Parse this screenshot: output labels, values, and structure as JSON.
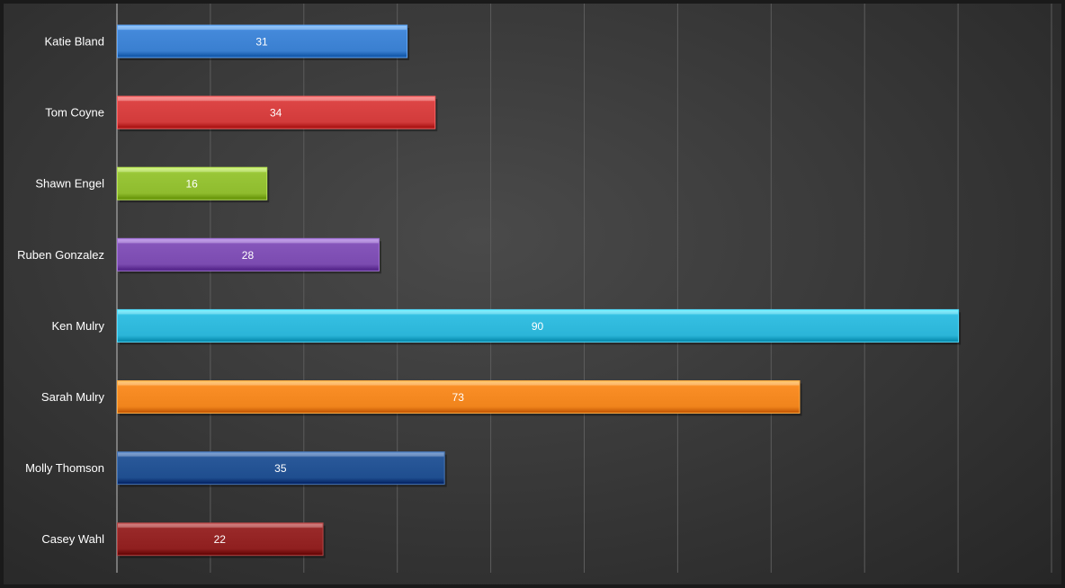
{
  "chart_data": {
    "type": "bar",
    "orientation": "horizontal",
    "categories": [
      "Katie Bland",
      "Tom Coyne",
      "Shawn Engel",
      "Ruben Gonzalez",
      "Ken Mulry",
      "Sarah Mulry",
      "Molly Thomson",
      "Casey Wahl"
    ],
    "values": [
      31,
      34,
      16,
      28,
      90,
      73,
      35,
      22
    ],
    "colors": [
      "#3a7fd0",
      "#d23b3b",
      "#8fbc2e",
      "#7b4bb0",
      "#2bb5d8",
      "#f0841c",
      "#1f4e8f",
      "#8f1f1f"
    ],
    "xlim": [
      0,
      100
    ],
    "grid": true,
    "data_labels": true
  }
}
